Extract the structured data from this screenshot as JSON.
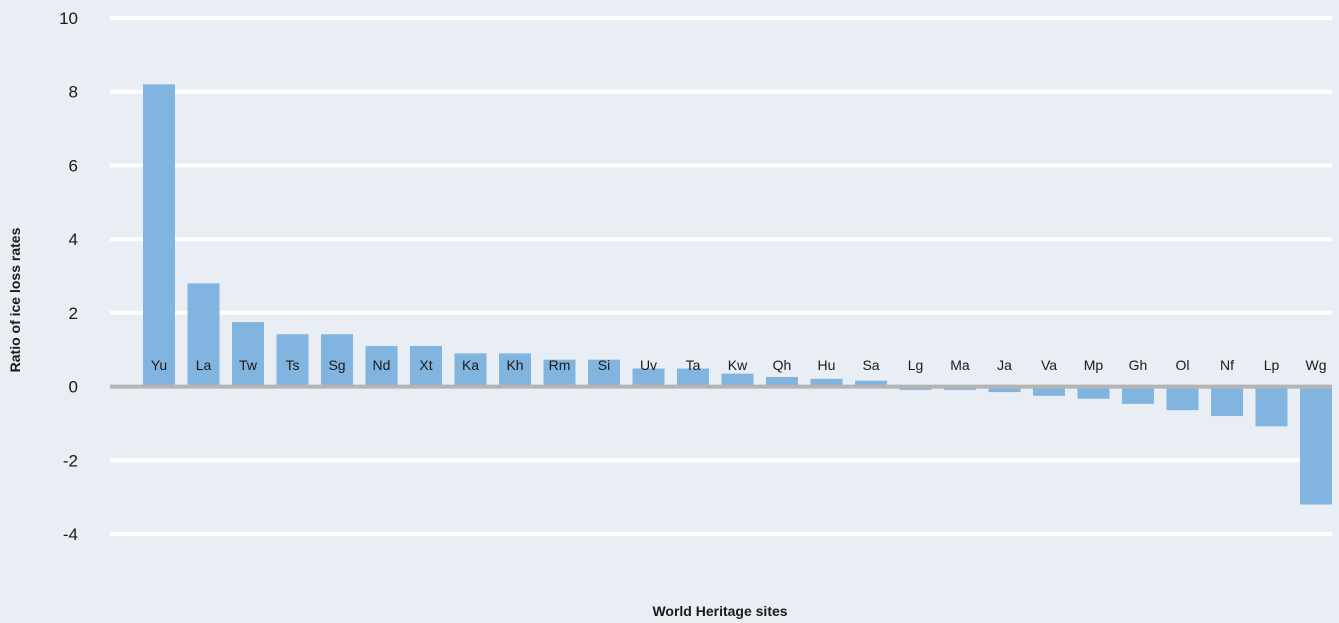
{
  "chart_data": {
    "type": "bar",
    "xlabel": "World Heritage sites",
    "ylabel": "Ratio of ice loss rates",
    "ylim": [
      -4,
      10
    ],
    "yticks": [
      10,
      8,
      6,
      4,
      2,
      0,
      -2,
      -4
    ],
    "grid": true,
    "categories": [
      "Yu",
      "La",
      "Tw",
      "Ts",
      "Sg",
      "Nd",
      "Xt",
      "Ka",
      "Kh",
      "Rm",
      "Si",
      "Uv",
      "Ta",
      "Kw",
      "Qh",
      "Hu",
      "Sa",
      "Lg",
      "Ma",
      "Ja",
      "Va",
      "Mp",
      "Gh",
      "Ol",
      "Nf",
      "Lp",
      "Wg"
    ],
    "values": [
      8.2,
      2.8,
      1.75,
      1.42,
      1.42,
      1.1,
      1.1,
      0.9,
      0.9,
      0.73,
      0.73,
      0.49,
      0.49,
      0.35,
      0.26,
      0.21,
      0.16,
      -0.09,
      -0.09,
      -0.15,
      -0.25,
      -0.33,
      -0.47,
      -0.64,
      -0.8,
      -1.08,
      -3.2
    ],
    "colors": {
      "bar": "#82b4e0",
      "grid": "#ffffff",
      "zero_line": "#b4b4b4",
      "background": "#e8eef3"
    }
  }
}
